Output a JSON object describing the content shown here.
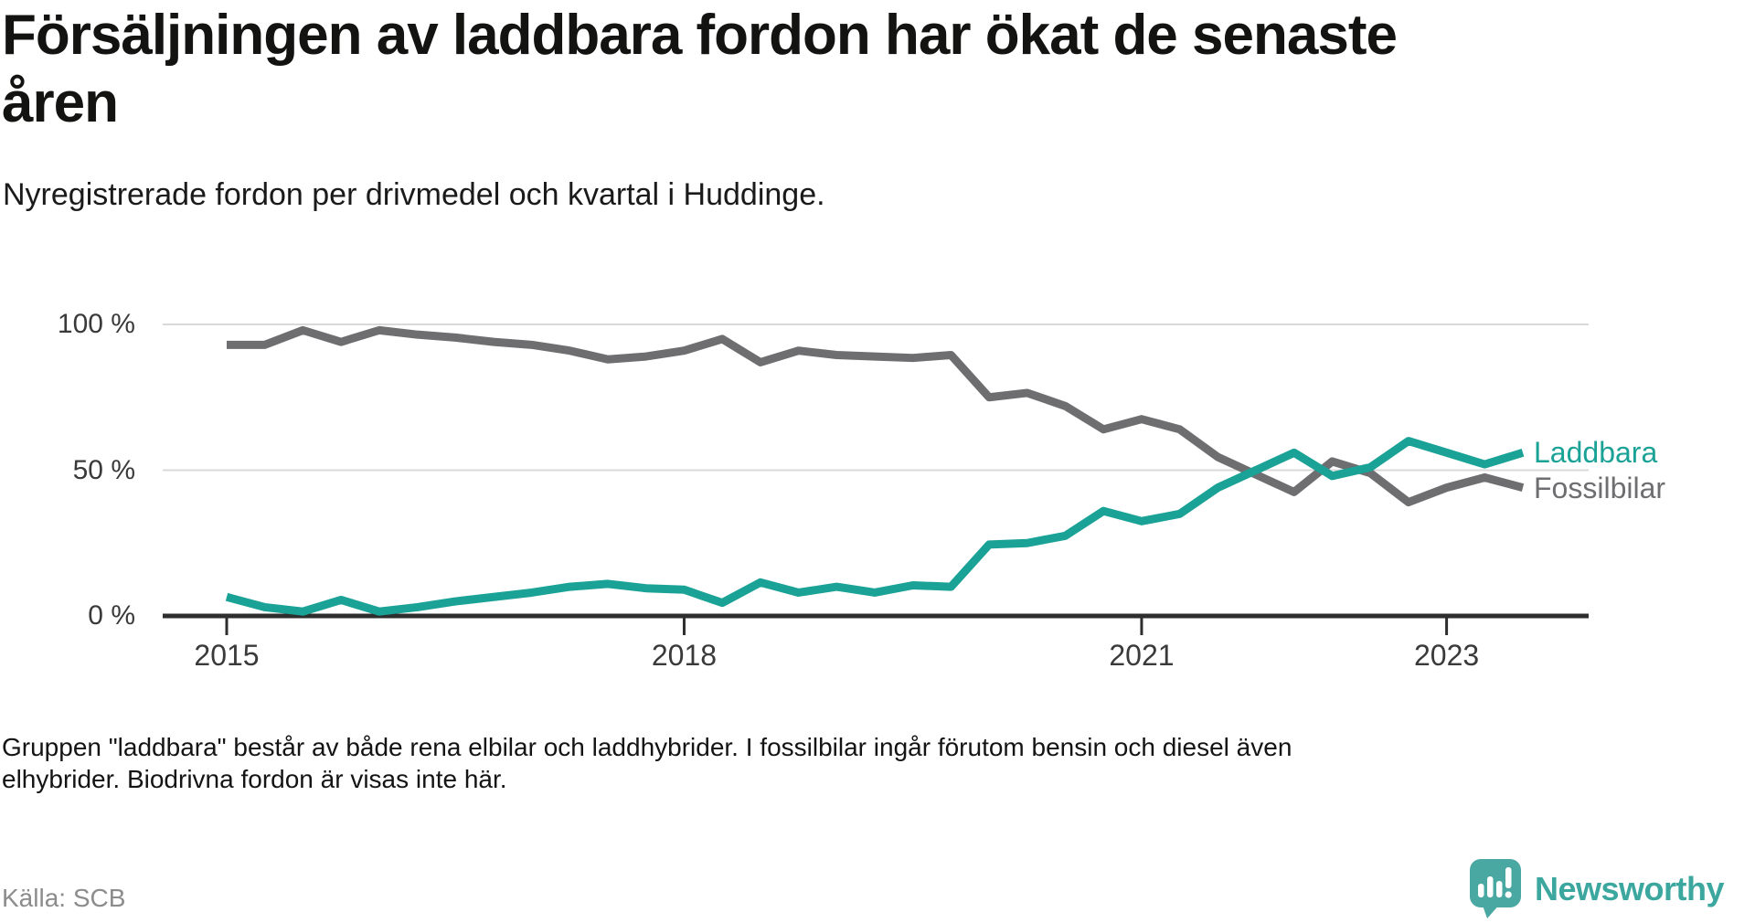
{
  "header": {
    "title_line1": "Försäljningen av laddbara fordon har ökat de senaste",
    "title_line2": "åren",
    "subtitle": "Nyregistrerade fordon per drivmedel och kvartal i Huddinge."
  },
  "chart_data": {
    "type": "line",
    "title": "Försäljningen av laddbara fordon har ökat de senaste åren",
    "subtitle": "Nyregistrerade fordon per drivmedel och kvartal i Huddinge.",
    "unit": "%",
    "ylim": [
      0,
      100
    ],
    "grid": "horizontal",
    "legend_position": "right-end-labels",
    "x_start": "2015 Q1",
    "x_end": "2023 Q3",
    "x_freq": "quarterly",
    "x_ticks": [
      {
        "label": "2015",
        "q": 0
      },
      {
        "label": "2018",
        "q": 12
      },
      {
        "label": "2021",
        "q": 24
      },
      {
        "label": "2023",
        "q": 32
      }
    ],
    "y_ticks": [
      {
        "label": "100 %",
        "value": 100
      },
      {
        "label": "50 %",
        "value": 50
      },
      {
        "label": "0 %",
        "value": 0
      }
    ],
    "series": [
      {
        "name": "Laddbara",
        "color": "#1aa296",
        "values": [
          6.5,
          3,
          1.5,
          5.5,
          1.5,
          3,
          5,
          6.5,
          8,
          10,
          11,
          9.5,
          9,
          4.5,
          11.5,
          8,
          10,
          8,
          10.5,
          10,
          24.5,
          25,
          27.5,
          36,
          32.5,
          35,
          44,
          50,
          56,
          48,
          51,
          60,
          56,
          52,
          56
        ]
      },
      {
        "name": "Fossilbilar",
        "color": "#6e6e71",
        "values": [
          93,
          93,
          98,
          94,
          98,
          96.5,
          95.5,
          94,
          93,
          91,
          88,
          89,
          91,
          95,
          87,
          91,
          89.5,
          89,
          88.5,
          89.5,
          75,
          76.5,
          72,
          64,
          67.5,
          64,
          54.5,
          48.5,
          42.5,
          53,
          49,
          39,
          44,
          47.5,
          44
        ]
      }
    ]
  },
  "footnote": "Gruppen \"laddbara\" består av både rena elbilar och laddhybrider. I fossilbilar ingår förutom bensin och diesel även elhybrider. Biodrivna fordon är visas inte här.",
  "source": "Källa: SCB",
  "branding": {
    "logo_text": "Newsworthy",
    "logo_color": "#3ca79f"
  }
}
